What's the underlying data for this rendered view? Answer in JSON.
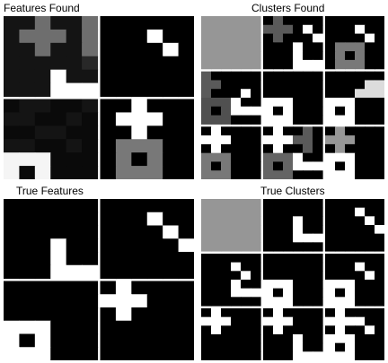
{
  "titles": {
    "features_found": "Features Found",
    "clusters_found": "Clusters Found",
    "true_features": "True Features",
    "true_clusters": "True Clusters"
  },
  "colors": {
    "background": "#ffffff",
    "pixel_dark": "#000000",
    "pixel_light": "#ffffff"
  },
  "figure": {
    "description_free": true,
    "features_found": [
      [
        [
          20,
          20,
          110,
          20,
          20,
          110
        ],
        [
          20,
          110,
          110,
          110,
          20,
          110
        ],
        [
          20,
          20,
          110,
          20,
          20,
          110
        ],
        [
          20,
          20,
          20,
          20,
          20,
          40
        ],
        [
          20,
          20,
          20,
          255,
          20,
          20
        ],
        [
          20,
          20,
          20,
          255,
          255,
          255
        ]
      ],
      [
        [
          0,
          0,
          0,
          0,
          0,
          0
        ],
        [
          0,
          0,
          0,
          255,
          0,
          0
        ],
        [
          0,
          0,
          0,
          0,
          255,
          0
        ],
        [
          0,
          0,
          0,
          0,
          0,
          0
        ],
        [
          0,
          0,
          0,
          0,
          0,
          0
        ],
        [
          0,
          0,
          0,
          0,
          0,
          0
        ]
      ],
      [
        [
          10,
          20,
          20,
          10,
          10,
          20
        ],
        [
          20,
          20,
          10,
          10,
          20,
          10
        ],
        [
          10,
          10,
          20,
          20,
          10,
          10
        ],
        [
          20,
          20,
          10,
          10,
          20,
          10
        ],
        [
          245,
          245,
          245,
          10,
          10,
          10
        ],
        [
          245,
          10,
          245,
          10,
          10,
          10
        ]
      ],
      [
        [
          0,
          0,
          255,
          0,
          0,
          0
        ],
        [
          0,
          255,
          255,
          255,
          0,
          0
        ],
        [
          0,
          0,
          255,
          0,
          0,
          0
        ],
        [
          0,
          120,
          120,
          120,
          0,
          0
        ],
        [
          0,
          120,
          0,
          120,
          0,
          0
        ],
        [
          0,
          120,
          120,
          120,
          0,
          0
        ]
      ]
    ],
    "clusters_found": [
      [
        [
          150,
          150,
          150,
          150,
          150,
          150
        ],
        [
          150,
          150,
          150,
          150,
          150,
          150
        ],
        [
          150,
          150,
          150,
          150,
          150,
          150
        ],
        [
          150,
          150,
          150,
          150,
          150,
          150
        ],
        [
          150,
          150,
          150,
          150,
          150,
          150
        ],
        [
          150,
          150,
          150,
          150,
          150,
          150
        ]
      ],
      [
        [
          0,
          90,
          0,
          0,
          0,
          0
        ],
        [
          90,
          90,
          90,
          0,
          255,
          0
        ],
        [
          0,
          90,
          0,
          0,
          0,
          255
        ],
        [
          0,
          0,
          0,
          255,
          0,
          0
        ],
        [
          0,
          0,
          0,
          255,
          0,
          0
        ],
        [
          0,
          0,
          0,
          255,
          255,
          255
        ]
      ],
      [
        [
          0,
          0,
          0,
          0,
          0,
          0
        ],
        [
          0,
          0,
          0,
          255,
          0,
          0
        ],
        [
          0,
          0,
          0,
          0,
          255,
          0
        ],
        [
          0,
          120,
          120,
          120,
          0,
          0
        ],
        [
          0,
          120,
          0,
          120,
          0,
          0
        ],
        [
          0,
          120,
          120,
          120,
          0,
          0
        ]
      ],
      [
        [
          90,
          0,
          0,
          0,
          0,
          0
        ],
        [
          90,
          90,
          0,
          0,
          0,
          0
        ],
        [
          90,
          0,
          0,
          0,
          255,
          0
        ],
        [
          80,
          80,
          80,
          255,
          0,
          0
        ],
        [
          80,
          0,
          80,
          255,
          255,
          255
        ],
        [
          80,
          80,
          80,
          0,
          0,
          0
        ]
      ],
      [
        [
          0,
          0,
          0,
          0,
          0,
          0
        ],
        [
          0,
          0,
          0,
          0,
          0,
          0
        ],
        [
          0,
          0,
          0,
          0,
          0,
          0
        ],
        [
          255,
          255,
          255,
          0,
          0,
          0
        ],
        [
          255,
          0,
          255,
          0,
          0,
          0
        ],
        [
          255,
          255,
          255,
          0,
          0,
          0
        ]
      ],
      [
        [
          0,
          0,
          0,
          0,
          0,
          0
        ],
        [
          0,
          0,
          0,
          0,
          220,
          220
        ],
        [
          0,
          0,
          0,
          220,
          220,
          220
        ],
        [
          255,
          255,
          255,
          0,
          0,
          0
        ],
        [
          255,
          0,
          255,
          0,
          0,
          0
        ],
        [
          255,
          255,
          255,
          0,
          0,
          0
        ]
      ],
      [
        [
          0,
          255,
          0,
          0,
          0,
          0
        ],
        [
          255,
          255,
          255,
          0,
          0,
          0
        ],
        [
          0,
          255,
          0,
          0,
          0,
          0
        ],
        [
          120,
          120,
          120,
          0,
          0,
          0
        ],
        [
          120,
          0,
          120,
          0,
          0,
          0
        ],
        [
          120,
          120,
          120,
          0,
          0,
          0
        ]
      ],
      [
        [
          0,
          255,
          0,
          0,
          90,
          0
        ],
        [
          255,
          255,
          255,
          90,
          90,
          0
        ],
        [
          0,
          255,
          0,
          0,
          90,
          0
        ],
        [
          100,
          100,
          100,
          255,
          0,
          0
        ],
        [
          100,
          0,
          100,
          255,
          255,
          255
        ],
        [
          100,
          100,
          100,
          0,
          0,
          0
        ]
      ],
      [
        [
          0,
          150,
          0,
          0,
          0,
          0
        ],
        [
          150,
          150,
          150,
          0,
          0,
          0
        ],
        [
          0,
          150,
          0,
          0,
          0,
          0
        ],
        [
          255,
          255,
          255,
          0,
          0,
          0
        ],
        [
          255,
          0,
          255,
          0,
          0,
          0
        ],
        [
          255,
          255,
          255,
          0,
          0,
          0
        ]
      ]
    ],
    "true_features": [
      [
        [
          0,
          0,
          0,
          0,
          0,
          0
        ],
        [
          0,
          0,
          0,
          0,
          0,
          0
        ],
        [
          0,
          0,
          0,
          0,
          0,
          0
        ],
        [
          0,
          0,
          0,
          255,
          0,
          0
        ],
        [
          0,
          0,
          0,
          255,
          0,
          0
        ],
        [
          0,
          0,
          0,
          255,
          255,
          255
        ]
      ],
      [
        [
          0,
          0,
          0,
          0,
          0,
          0
        ],
        [
          0,
          0,
          0,
          255,
          0,
          0
        ],
        [
          0,
          0,
          0,
          0,
          255,
          0
        ],
        [
          0,
          0,
          0,
          0,
          0,
          255
        ],
        [
          0,
          0,
          0,
          0,
          0,
          0
        ],
        [
          0,
          0,
          0,
          0,
          0,
          0
        ]
      ],
      [
        [
          0,
          0,
          0,
          0,
          0,
          0
        ],
        [
          0,
          0,
          0,
          0,
          0,
          0
        ],
        [
          0,
          0,
          0,
          0,
          0,
          0
        ],
        [
          255,
          255,
          255,
          0,
          0,
          0
        ],
        [
          255,
          0,
          255,
          0,
          0,
          0
        ],
        [
          255,
          255,
          255,
          0,
          0,
          0
        ]
      ],
      [
        [
          0,
          255,
          0,
          0,
          0,
          0
        ],
        [
          255,
          255,
          255,
          0,
          0,
          0
        ],
        [
          0,
          255,
          0,
          0,
          0,
          0
        ],
        [
          0,
          0,
          0,
          0,
          0,
          0
        ],
        [
          0,
          0,
          0,
          0,
          0,
          0
        ],
        [
          0,
          0,
          0,
          0,
          0,
          0
        ]
      ]
    ],
    "true_clusters": [
      [
        [
          150,
          150,
          150,
          150,
          150,
          150
        ],
        [
          150,
          150,
          150,
          150,
          150,
          150
        ],
        [
          150,
          150,
          150,
          150,
          150,
          150
        ],
        [
          150,
          150,
          150,
          150,
          150,
          150
        ],
        [
          150,
          150,
          150,
          150,
          150,
          150
        ],
        [
          150,
          150,
          150,
          150,
          150,
          150
        ]
      ],
      [
        [
          0,
          0,
          0,
          0,
          0,
          0
        ],
        [
          0,
          0,
          0,
          0,
          0,
          0
        ],
        [
          0,
          0,
          0,
          255,
          0,
          0
        ],
        [
          0,
          0,
          0,
          255,
          0,
          0
        ],
        [
          0,
          0,
          0,
          255,
          255,
          255
        ],
        [
          0,
          0,
          0,
          0,
          0,
          0
        ]
      ],
      [
        [
          0,
          0,
          0,
          0,
          0,
          0
        ],
        [
          0,
          0,
          0,
          255,
          0,
          0
        ],
        [
          0,
          0,
          0,
          0,
          255,
          0
        ],
        [
          0,
          0,
          0,
          0,
          0,
          255
        ],
        [
          0,
          0,
          0,
          0,
          0,
          0
        ],
        [
          0,
          0,
          0,
          0,
          0,
          0
        ]
      ],
      [
        [
          0,
          0,
          0,
          0,
          0,
          0
        ],
        [
          0,
          0,
          0,
          255,
          0,
          0
        ],
        [
          0,
          0,
          0,
          0,
          255,
          0
        ],
        [
          0,
          0,
          0,
          255,
          0,
          0
        ],
        [
          0,
          0,
          0,
          255,
          255,
          255
        ],
        [
          0,
          0,
          0,
          0,
          0,
          0
        ]
      ],
      [
        [
          0,
          0,
          0,
          0,
          0,
          0
        ],
        [
          0,
          0,
          0,
          0,
          0,
          0
        ],
        [
          0,
          0,
          0,
          0,
          0,
          0
        ],
        [
          255,
          255,
          255,
          0,
          0,
          0
        ],
        [
          255,
          0,
          255,
          0,
          0,
          0
        ],
        [
          255,
          255,
          255,
          0,
          0,
          0
        ]
      ],
      [
        [
          0,
          0,
          0,
          0,
          0,
          0
        ],
        [
          0,
          0,
          0,
          255,
          0,
          0
        ],
        [
          0,
          0,
          0,
          0,
          255,
          0
        ],
        [
          255,
          255,
          255,
          0,
          0,
          0
        ],
        [
          255,
          0,
          255,
          0,
          0,
          0
        ],
        [
          255,
          255,
          255,
          0,
          0,
          0
        ]
      ],
      [
        [
          0,
          255,
          0,
          0,
          0,
          0
        ],
        [
          255,
          255,
          255,
          0,
          0,
          0
        ],
        [
          0,
          255,
          0,
          0,
          0,
          0
        ],
        [
          0,
          0,
          0,
          0,
          0,
          0
        ],
        [
          0,
          0,
          0,
          0,
          0,
          0
        ],
        [
          0,
          0,
          0,
          0,
          0,
          0
        ]
      ],
      [
        [
          0,
          255,
          0,
          0,
          0,
          0
        ],
        [
          255,
          255,
          255,
          0,
          0,
          0
        ],
        [
          0,
          255,
          0,
          0,
          0,
          0
        ],
        [
          0,
          0,
          0,
          255,
          0,
          0
        ],
        [
          0,
          0,
          0,
          255,
          0,
          0
        ],
        [
          0,
          0,
          0,
          255,
          255,
          255
        ]
      ],
      [
        [
          0,
          255,
          0,
          0,
          0,
          0
        ],
        [
          255,
          255,
          255,
          255,
          0,
          0
        ],
        [
          0,
          255,
          0,
          0,
          255,
          0
        ],
        [
          255,
          255,
          255,
          0,
          0,
          0
        ],
        [
          255,
          0,
          255,
          0,
          0,
          0
        ],
        [
          255,
          255,
          255,
          0,
          0,
          0
        ]
      ]
    ]
  }
}
